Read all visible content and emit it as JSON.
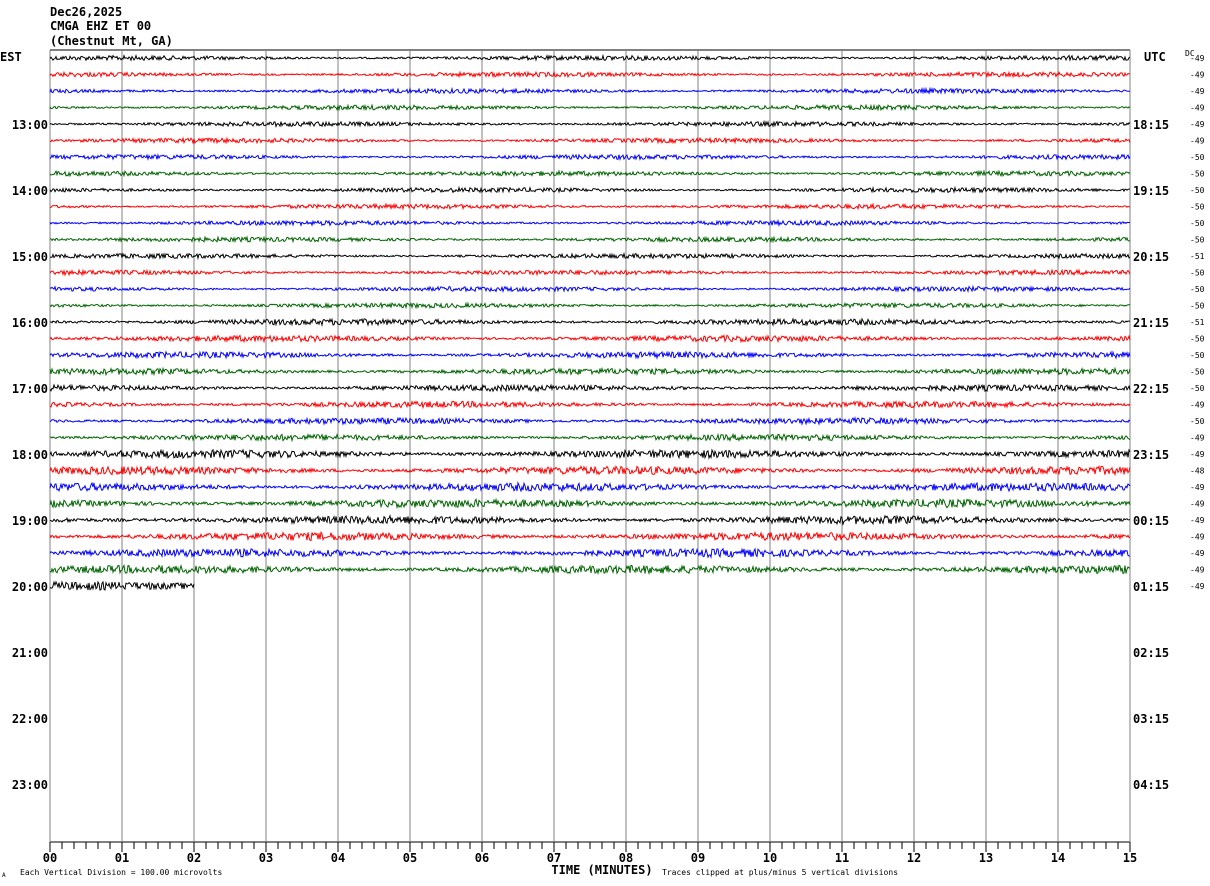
{
  "header": {
    "date": "Dec26,2025",
    "station": "CMGA EHZ ET 00",
    "location": "(Chestnut Mt, GA)"
  },
  "chart_data": {
    "type": "line",
    "title": "",
    "left_axis_label": "EST",
    "right_axis_label": "UTC",
    "dc_label": "DC",
    "xlabel": "TIME (MINUTES)",
    "xlim": [
      0,
      15
    ],
    "x_tick_labels": [
      "00",
      "01",
      "02",
      "03",
      "04",
      "05",
      "06",
      "07",
      "08",
      "09",
      "10",
      "11",
      "12",
      "13",
      "14",
      "15"
    ],
    "est_hour_labels": [
      "13:00",
      "14:00",
      "15:00",
      "16:00",
      "17:00",
      "18:00",
      "19:00",
      "20:00",
      "21:00",
      "22:00",
      "23:00"
    ],
    "utc_hour_labels": [
      "18:15",
      "19:15",
      "20:15",
      "21:15",
      "22:15",
      "23:15",
      "00:15",
      "01:15",
      "02:15",
      "03:15",
      "04:15"
    ],
    "trace_colors": [
      "#000000",
      "#ff0000",
      "#0000ff",
      "#006400"
    ],
    "dc_offsets": [
      -49,
      -49,
      -49,
      -49,
      -49,
      -49,
      -50,
      -50,
      -50,
      -50,
      -50,
      -50,
      -51,
      -50,
      -50,
      -50,
      -51,
      -50,
      -50,
      -50,
      -50,
      -49,
      -50,
      -49,
      -49,
      -48,
      -49,
      -49,
      -49,
      -49,
      -49,
      -49,
      -49
    ],
    "last_trace_end_minute": 2,
    "grid": true
  },
  "footer": {
    "scale_note": "Each Vertical Division =  100.00 microvolts",
    "clip_note": "Traces clipped at plus/minus 5 vertical divisions",
    "corner_mark": "A"
  }
}
